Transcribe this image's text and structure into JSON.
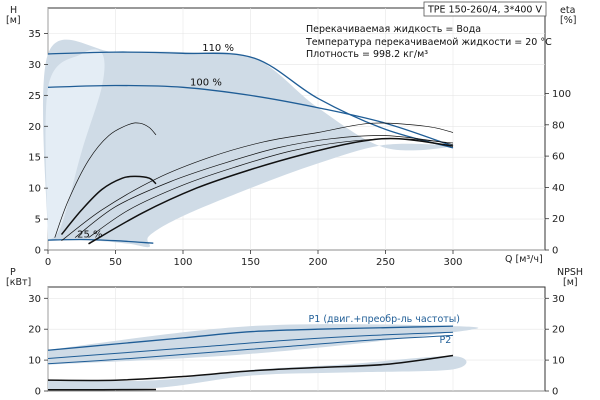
{
  "header": {
    "model": "TPE 150-260/4, 3*400 V"
  },
  "info": {
    "liquid": "Перекачиваемая жидкость = Вода",
    "temperature": "Температура перекачиваемой жидкости = 20 °C",
    "density": "Плотность = 998.2 кг/м³"
  },
  "colors": {
    "area": "#cfdbe6",
    "area_light": "#e4edf5",
    "blue": "#1f5d96",
    "black": "#111111"
  },
  "chart_data": [
    {
      "type": "line",
      "ylabel_line1": "H",
      "ylabel_line2": "[м]",
      "y2label_line1": "eta",
      "y2label_line2": "[%]",
      "xlabel": "Q [м³/ч]",
      "xlim": [
        0,
        370
      ],
      "ylim": [
        0,
        37
      ],
      "y2lim": [
        0,
        128.2
      ],
      "xticks": [
        0,
        50,
        100,
        150,
        200,
        250,
        300
      ],
      "yticks": [
        0,
        5,
        10,
        15,
        20,
        25,
        30,
        35
      ],
      "y2ticks": [
        0,
        20,
        40,
        60,
        80,
        100
      ],
      "speed_labels": [
        {
          "text": "110 %",
          "x": 126,
          "y": 32.2
        },
        {
          "text": "100 %",
          "x": 117,
          "y": 26.6
        },
        {
          "text": "25 %",
          "x": 31,
          "y": 2.0
        }
      ],
      "operating_area": [
        [
          0,
          1.6
        ],
        [
          0,
          31.7
        ],
        [
          50,
          32
        ],
        [
          100,
          32
        ],
        [
          153,
          31
        ],
        [
          200,
          23
        ],
        [
          250,
          16.5
        ],
        [
          300,
          16.8
        ],
        [
          250,
          17
        ],
        [
          200,
          14
        ],
        [
          150,
          10
        ],
        [
          100,
          5.5
        ],
        [
          75,
          2.3
        ],
        [
          75,
          0.5
        ],
        [
          60,
          1
        ],
        [
          35,
          1.5
        ],
        [
          0,
          1.6
        ]
      ],
      "area_light": [
        [
          0,
          1.5
        ],
        [
          0,
          26.2
        ],
        [
          25,
          31.7
        ],
        [
          40,
          31.8
        ],
        [
          40,
          26.5
        ],
        [
          25,
          16
        ],
        [
          10,
          4
        ],
        [
          0,
          1.5
        ]
      ],
      "series": [
        {
          "name": "110 %",
          "color": "blue",
          "width": 1.3,
          "points": [
            [
              0,
              31.7
            ],
            [
              50,
              32.0
            ],
            [
              100,
              31.8
            ],
            [
              153,
              31.0
            ],
            [
              200,
              24.5
            ],
            [
              250,
              19.5
            ],
            [
              300,
              16.5
            ]
          ]
        },
        {
          "name": "100 %",
          "color": "blue",
          "width": 1.3,
          "points": [
            [
              0,
              26.3
            ],
            [
              50,
              26.6
            ],
            [
              100,
              26.3
            ],
            [
              150,
              25.0
            ],
            [
              200,
              23.0
            ],
            [
              250,
              20.5
            ],
            [
              300,
              16.8
            ]
          ]
        },
        {
          "name": "25 %",
          "color": "blue",
          "width": 1.3,
          "points": [
            [
              0,
              1.6
            ],
            [
              25,
              1.7
            ],
            [
              50,
              1.5
            ],
            [
              78,
              1.1
            ]
          ]
        },
        {
          "color": "black",
          "width": 0.7,
          "points": [
            [
              5,
              2
            ],
            [
              15,
              8
            ],
            [
              30,
              14.5
            ],
            [
              45,
              18.5
            ],
            [
              60,
              20.3
            ],
            [
              68,
              20.5
            ],
            [
              75,
              19.8
            ],
            [
              80,
              18.6
            ]
          ],
          "eta": true
        },
        {
          "color": "black",
          "width": 1.5,
          "points": [
            [
              10,
              2.5
            ],
            [
              25,
              6.5
            ],
            [
              40,
              9.8
            ],
            [
              55,
              11.6
            ],
            [
              65,
              11.9
            ],
            [
              75,
              11.6
            ],
            [
              80,
              10.7
            ]
          ],
          "eta": true
        },
        {
          "color": "black",
          "width": 0.7,
          "points": [
            [
              10,
              1.5
            ],
            [
              40,
              6.5
            ],
            [
              80,
              11.5
            ],
            [
              120,
              15
            ],
            [
              160,
              17.5
            ],
            [
              200,
              19
            ],
            [
              240,
              20.5
            ],
            [
              280,
              20
            ],
            [
              300,
              19
            ]
          ],
          "eta": true
        },
        {
          "color": "black",
          "width": 0.7,
          "points": [
            [
              20,
              2
            ],
            [
              50,
              7
            ],
            [
              90,
              11
            ],
            [
              130,
              14
            ],
            [
              170,
              16.5
            ],
            [
              210,
              18
            ],
            [
              250,
              18.5
            ],
            [
              290,
              17.5
            ],
            [
              300,
              17
            ]
          ],
          "eta": true
        },
        {
          "color": "black",
          "width": 0.7,
          "points": [
            [
              30,
              2
            ],
            [
              60,
              6.5
            ],
            [
              100,
              10.5
            ],
            [
              140,
              13.5
            ],
            [
              180,
              16
            ],
            [
              220,
              17.5
            ],
            [
              260,
              18
            ],
            [
              300,
              17.3
            ]
          ],
          "eta": true
        },
        {
          "color": "black",
          "width": 1.5,
          "points": [
            [
              30,
              1
            ],
            [
              70,
              6
            ],
            [
              110,
              10
            ],
            [
              150,
              13
            ],
            [
              190,
              15.5
            ],
            [
              230,
              17.5
            ],
            [
              260,
              18
            ],
            [
              300,
              16.8
            ]
          ],
          "eta": true
        }
      ]
    },
    {
      "type": "line",
      "ylabel_line1": "P",
      "ylabel_line2": "[кВт]",
      "y2label_line1": "NPSH",
      "y2label_line2": "[м]",
      "xlim": [
        0,
        370
      ],
      "ylim": [
        0,
        37
      ],
      "y2lim": [
        0,
        37
      ],
      "yticks": [
        0,
        10,
        20,
        30
      ],
      "y2ticks": [
        0,
        10,
        20,
        30
      ],
      "band": [
        [
          0,
          13.3
        ],
        [
          150,
          21
        ],
        [
          300,
          21
        ],
        [
          300,
          19
        ],
        [
          150,
          12
        ],
        [
          0,
          8.5
        ]
      ],
      "band_low": [
        [
          0,
          3.4
        ],
        [
          80,
          3.5
        ],
        [
          150,
          6.8
        ],
        [
          220,
          8.6
        ],
        [
          300,
          11.3
        ],
        [
          300,
          7
        ],
        [
          220,
          6
        ],
        [
          150,
          5
        ],
        [
          80,
          1
        ],
        [
          0,
          0.5
        ]
      ],
      "series_labels": [
        {
          "text": "P1 (двиг.+преобр-ль частоты)",
          "x": 193,
          "y": 22.3
        },
        {
          "text": "P2",
          "x": 290,
          "y": 15.5
        }
      ],
      "series": [
        {
          "name": "P1 (двиг.+преобр-ль частоты)",
          "color": "blue",
          "width": 1.3,
          "points": [
            [
              0,
              13.2
            ],
            [
              50,
              15.2
            ],
            [
              100,
              17.2
            ],
            [
              150,
              19.2
            ],
            [
              200,
              20.0
            ],
            [
              250,
              20.5
            ],
            [
              300,
              21.0
            ]
          ]
        },
        {
          "color": "blue",
          "width": 1.0,
          "points": [
            [
              0,
              10.5
            ],
            [
              60,
              12.5
            ],
            [
              120,
              14.5
            ],
            [
              180,
              16.5
            ],
            [
              240,
              18
            ],
            [
              300,
              19
            ]
          ]
        },
        {
          "name": "P2",
          "color": "blue",
          "width": 1.0,
          "points": [
            [
              0,
              8.8
            ],
            [
              60,
              10.5
            ],
            [
              120,
              12.5
            ],
            [
              180,
              14.5
            ],
            [
              240,
              16.5
            ],
            [
              300,
              18
            ]
          ]
        },
        {
          "color": "black",
          "width": 1.5,
          "points": [
            [
              0,
              3.5
            ],
            [
              50,
              3.5
            ],
            [
              100,
              4.7
            ],
            [
              150,
              6.5
            ],
            [
              200,
              7.6
            ],
            [
              250,
              8.6
            ],
            [
              300,
              11.5
            ]
          ]
        },
        {
          "color": "black",
          "width": 1.5,
          "points": [
            [
              0,
              0.4
            ],
            [
              40,
              0.4
            ],
            [
              80,
              0.5
            ]
          ]
        }
      ]
    }
  ]
}
